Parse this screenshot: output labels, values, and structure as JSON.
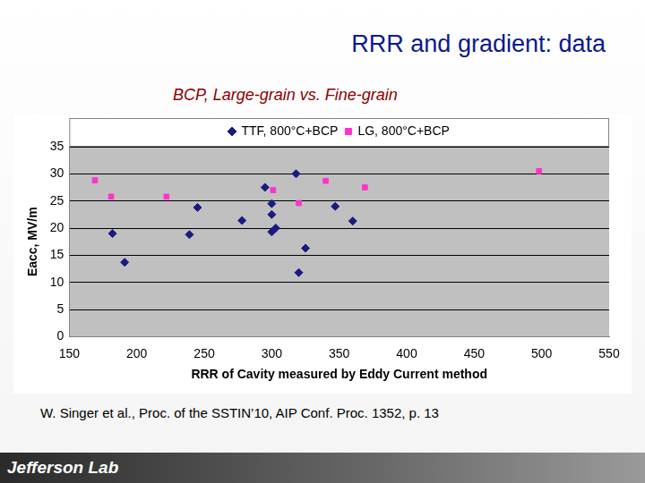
{
  "slide": {
    "title": "RRR and gradient: data",
    "subtitle": "BCP, Large-grain vs. Fine-grain",
    "citation": "W. Singer et al., Proc. of the SSTIN’10, AIP Conf. Proc. 1352, p. 13",
    "footer": "Jefferson Lab"
  },
  "chart_data": {
    "type": "scatter",
    "x_label": "RRR of Cavity measured by Eddy Current method",
    "y_label": "Eacc, MV/m",
    "xlim": [
      150,
      550
    ],
    "xticks": [
      150,
      200,
      250,
      300,
      350,
      400,
      450,
      500,
      550
    ],
    "ylim": [
      0,
      35
    ],
    "yticks": [
      0,
      5,
      10,
      15,
      20,
      25,
      30,
      35
    ],
    "grid": true,
    "legend": "top",
    "series": [
      {
        "name": "TTF, 800°C+BCP",
        "color": "#1a1a80",
        "marker": "diamond",
        "x": [
          182,
          191,
          239,
          245,
          278,
          295,
          300,
          300,
          300,
          303,
          318,
          320,
          325,
          347,
          360
        ],
        "values": [
          19,
          13.7,
          18.8,
          23.8,
          21.4,
          27.5,
          24.5,
          22.5,
          19.3,
          20,
          30,
          11.8,
          16.3,
          24,
          21.3
        ]
      },
      {
        "name": "LG, 800°C+BCP",
        "color": "#ff33cc",
        "marker": "square",
        "x": [
          169,
          181,
          222,
          301,
          320,
          340,
          369,
          498
        ],
        "values": [
          28.8,
          25.8,
          25.8,
          27,
          24.6,
          28.7,
          27.5,
          30.5
        ]
      }
    ]
  }
}
